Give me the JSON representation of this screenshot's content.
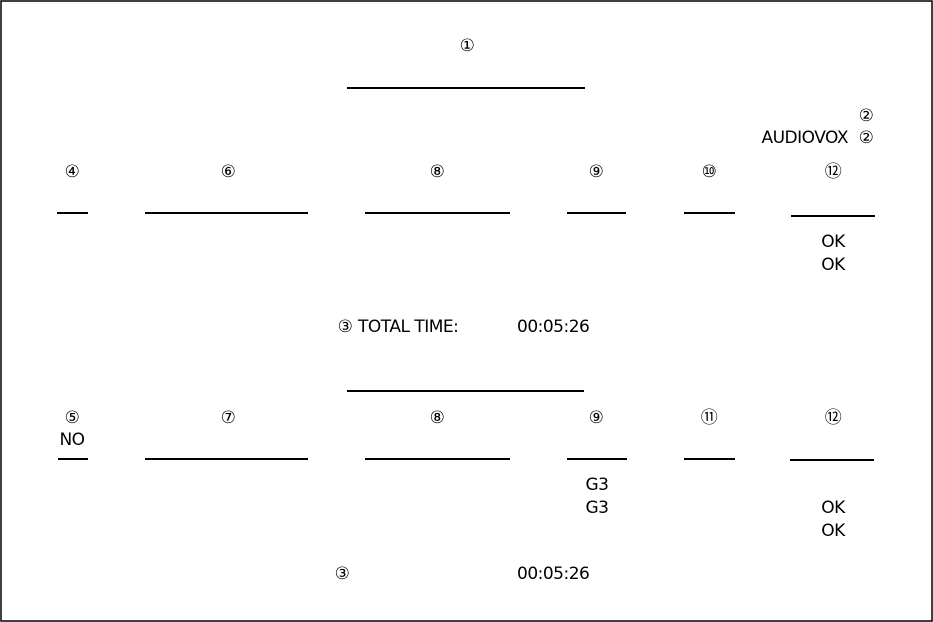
{
  "header": {
    "marker": "①",
    "remote_marker": "②",
    "remote_id": "AUDIOVOX",
    "remote_id_marker": "②"
  },
  "section_1": {
    "columns": [
      "④",
      "⑥",
      "⑧",
      "⑨",
      "⑩",
      "⑫"
    ],
    "results": [
      "OK",
      "OK"
    ],
    "total": {
      "marker": "③",
      "label": "TOTAL TIME:",
      "value": "00:05:26"
    }
  },
  "section_2": {
    "columns": [
      "⑤",
      "⑦",
      "⑧",
      "⑨",
      "⑪",
      "⑫"
    ],
    "status": "NO",
    "modes": [
      "G3",
      "G3"
    ],
    "results": [
      "OK",
      "OK"
    ],
    "total": {
      "marker": "③",
      "value": "00:05:26"
    }
  }
}
